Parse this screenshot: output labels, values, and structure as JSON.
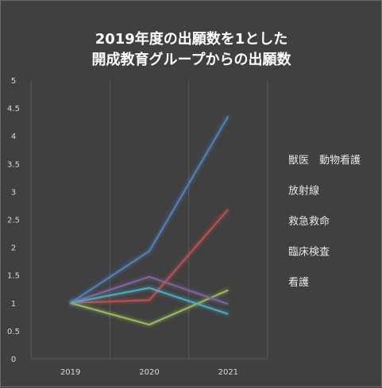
{
  "chart_data": {
    "type": "line",
    "title_lines": [
      "2019年度の出願数を1とした",
      "開成教育グループからの出願数"
    ],
    "categories": [
      "2019",
      "2020",
      "2021"
    ],
    "ylim": [
      0,
      5
    ],
    "yticks": [
      "0",
      "0.5",
      "1",
      "1.5",
      "2",
      "2.5",
      "3",
      "3.5",
      "4",
      "4.5",
      "5"
    ],
    "grid": "vertical",
    "legend_position": "right",
    "series": [
      {
        "name": "獣医　動物看護",
        "values": [
          1,
          1.93,
          4.35
        ],
        "color": "#4f81bd"
      },
      {
        "name": "放射線",
        "values": [
          1,
          1.05,
          2.68
        ],
        "color": "#c0504d"
      },
      {
        "name": "救急救命",
        "values": [
          1,
          0.61,
          1.23
        ],
        "color": "#9bbb59"
      },
      {
        "name": "臨床検査",
        "values": [
          1,
          1.47,
          0.98
        ],
        "color": "#8064a2"
      },
      {
        "name": "看護",
        "values": [
          1,
          1.27,
          0.8
        ],
        "color": "#4bacc6"
      }
    ]
  }
}
